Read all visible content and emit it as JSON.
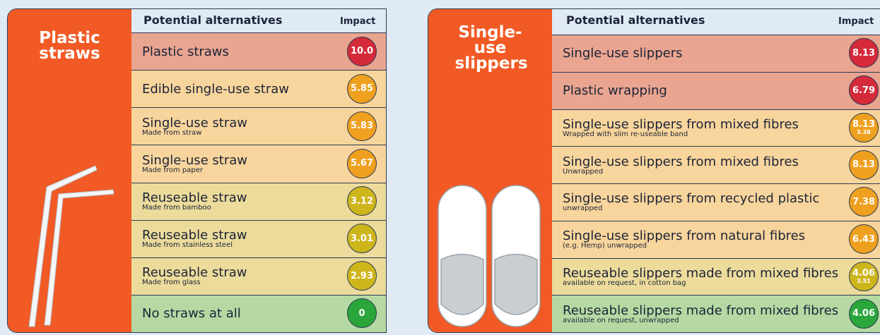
{
  "panels": [
    {
      "title": "Plastic straws",
      "header": "Potential alternatives",
      "impact_header": "Impact",
      "rows": [
        {
          "label": "Plastic straws",
          "impact": [
            "10.0"
          ],
          "color": "#e9a590",
          "badge": "#d42a3a"
        },
        {
          "label": "Edible single-use straw",
          "impact": [
            "5.85"
          ],
          "color": "#f8d59c",
          "badge": "#efa01e"
        },
        {
          "label": "Single-use straw",
          "note": "Made from straw",
          "impact": [
            "5.83"
          ],
          "color": "#f8d59c",
          "badge": "#efa01e"
        },
        {
          "label": "Single-use straw",
          "note": "Made from paper",
          "impact": [
            "5.67"
          ],
          "color": "#f8d59c",
          "badge": "#efa01e"
        },
        {
          "label": "Reuseable straw",
          "note": "Made from bamboo",
          "impact": [
            "3.12"
          ],
          "color": "#ecdb9b",
          "badge": "#cdb51c"
        },
        {
          "label": "Reuseable straw",
          "note": "Made from stainless steel",
          "impact": [
            "3.01"
          ],
          "color": "#ecdb9b",
          "badge": "#cdb51c"
        },
        {
          "label": "Reuseable straw",
          "note": "Made from glass",
          "impact": [
            "2.93"
          ],
          "color": "#ecdb9b",
          "badge": "#cdb51c"
        },
        {
          "label": "No straws at all",
          "impact": [
            "0"
          ],
          "color": "#b6d9a3",
          "badge": "#2aa63b"
        }
      ]
    },
    {
      "title": "Single-use slippers",
      "header": "Potential alternatives",
      "impact_header": "Impact",
      "rows": [
        {
          "label": "Single-use slippers",
          "impact": [
            "8.13"
          ],
          "color": "#e9a590",
          "badge": "#d42a3a"
        },
        {
          "label": "Plastic wrapping",
          "impact": [
            "6.79"
          ],
          "color": "#e9a590",
          "badge": "#d42a3a"
        },
        {
          "label": "Single-use slippers from mixed fibres",
          "note": "Wrapped with slim re-useable band",
          "impact": [
            "8.13",
            "3.38"
          ],
          "color": "#f8d59c",
          "badge": "#efa01e"
        },
        {
          "label": "Single-use slippers from mixed fibres",
          "note": "Unwrapped",
          "impact": [
            "8.13"
          ],
          "color": "#f8d59c",
          "badge": "#efa01e"
        },
        {
          "label": "Single-use slippers from recycled plastic",
          "note": "unwrapped",
          "impact": [
            "7.38"
          ],
          "color": "#f8d59c",
          "badge": "#efa01e"
        },
        {
          "label": "Single-use slippers from natural fibres",
          "note": "(e.g. Hemp) unwrapped",
          "impact": [
            "6.43"
          ],
          "color": "#f8d59c",
          "badge": "#efa01e"
        },
        {
          "label": "Reuseable slippers made from mixed fibres",
          "note": "available on request, in cotton bag",
          "impact": [
            "4.06",
            "3.51"
          ],
          "color": "#ecdb9b",
          "badge": "#cdb51c"
        },
        {
          "label": "Reuseable slippers made from mixed fibres",
          "note": "available on request, unwrapped",
          "impact": [
            "4.06"
          ],
          "color": "#b6d9a3",
          "badge": "#2aa63b"
        }
      ]
    }
  ]
}
